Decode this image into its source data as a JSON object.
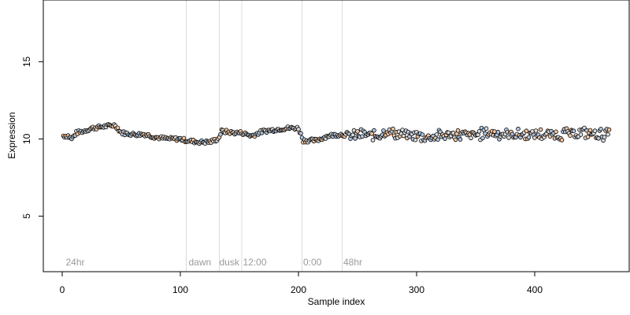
{
  "chart_data": {
    "type": "scatter",
    "title": "",
    "xlabel": "Sample index",
    "ylabel": "Expression",
    "xlim": [
      -16,
      480
    ],
    "ylim": [
      1.4,
      19
    ],
    "xticks": [
      0,
      100,
      200,
      300,
      400
    ],
    "yticks": [
      5,
      10,
      15
    ],
    "xtick_labels": [
      "0",
      "100",
      "200",
      "300",
      "400"
    ],
    "ytick_labels": [
      "5",
      "10",
      "15"
    ],
    "grid": false,
    "legend": "none",
    "point_colors": [
      "#b0c4de",
      "#f4c49c",
      "#d9d9d9"
    ],
    "point_stroke": "#000000",
    "divider_color": "#dcdcdc",
    "annotation_color": "#9a9a9a",
    "dividers": [
      105,
      133,
      152,
      203,
      237
    ],
    "annotations": [
      {
        "text": "24hr",
        "x": 3
      },
      {
        "text": "dawn",
        "x": 107
      },
      {
        "text": "dusk",
        "x": 133
      },
      {
        "text": "12:00",
        "x": 153
      },
      {
        "text": "0:00",
        "x": 204
      },
      {
        "text": "48hr",
        "x": 238
      }
    ],
    "anchors": [
      [
        1,
        10.2
      ],
      [
        5,
        10.2
      ],
      [
        8,
        10.0
      ],
      [
        12,
        10.4
      ],
      [
        18,
        10.5
      ],
      [
        25,
        10.7
      ],
      [
        35,
        10.8
      ],
      [
        45,
        10.9
      ],
      [
        50,
        10.4
      ],
      [
        60,
        10.3
      ],
      [
        70,
        10.3
      ],
      [
        80,
        10.1
      ],
      [
        90,
        10.0
      ],
      [
        100,
        10.0
      ],
      [
        105,
        9.9
      ],
      [
        115,
        9.8
      ],
      [
        125,
        9.8
      ],
      [
        132,
        10.0
      ],
      [
        135,
        10.5
      ],
      [
        145,
        10.4
      ],
      [
        152,
        10.4
      ],
      [
        160,
        10.2
      ],
      [
        170,
        10.5
      ],
      [
        180,
        10.6
      ],
      [
        190,
        10.7
      ],
      [
        200,
        10.7
      ],
      [
        204,
        9.9
      ],
      [
        210,
        9.9
      ],
      [
        215,
        9.9
      ],
      [
        225,
        10.2
      ],
      [
        235,
        10.3
      ],
      [
        245,
        10.2
      ],
      [
        255,
        10.3
      ],
      [
        265,
        10.2
      ],
      [
        275,
        10.5
      ],
      [
        285,
        10.3
      ],
      [
        300,
        10.2
      ],
      [
        310,
        10.1
      ],
      [
        320,
        10.2
      ],
      [
        330,
        10.3
      ],
      [
        345,
        10.2
      ],
      [
        360,
        10.4
      ],
      [
        380,
        10.3
      ],
      [
        400,
        10.3
      ],
      [
        420,
        10.3
      ],
      [
        440,
        10.4
      ],
      [
        455,
        10.3
      ],
      [
        462,
        10.3
      ]
    ],
    "n_points": 463
  }
}
